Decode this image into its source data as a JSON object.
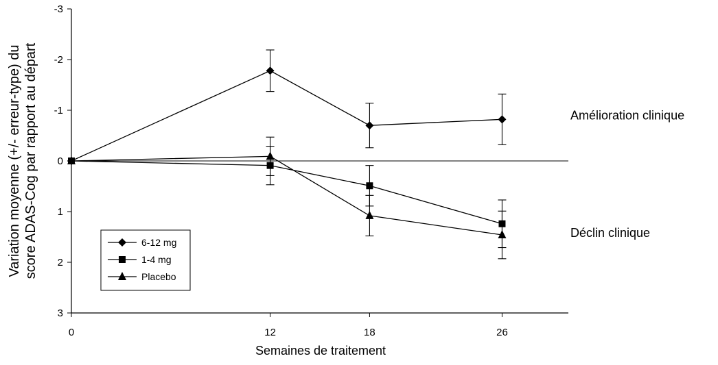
{
  "chart_data": {
    "type": "line",
    "ylabel_line1": "Variation moyenne (+/- erreur-type) du",
    "ylabel_line2": "score ADAS-Cog par rapport au départ",
    "xlabel": "Semaines de traitement",
    "x": [
      0,
      12,
      18,
      26
    ],
    "x_ticks": [
      "0",
      "12",
      "18",
      "26"
    ],
    "xlim": [
      0,
      30
    ],
    "ylim": [
      -3,
      3
    ],
    "y_inverted": true,
    "y_ticks": [
      "-3",
      "-2",
      "-1",
      "0",
      "1",
      "2",
      "3"
    ],
    "y_tick_values": [
      -3,
      -2,
      -1,
      0,
      1,
      2,
      3
    ],
    "zero_line": true,
    "grid": false,
    "series": [
      {
        "name": "6-12 mg",
        "marker": "diamond",
        "values": [
          0,
          -1.78,
          -0.7,
          -0.82
        ],
        "errors": [
          0,
          0.41,
          0.44,
          0.5
        ]
      },
      {
        "name": "1-4 mg",
        "marker": "square",
        "values": [
          0,
          0.09,
          0.49,
          1.24
        ],
        "errors": [
          0,
          0.38,
          0.4,
          0.47
        ]
      },
      {
        "name": "Placebo",
        "marker": "triangle",
        "values": [
          0,
          -0.09,
          1.08,
          1.46
        ],
        "errors": [
          0,
          0.38,
          0.4,
          0.47
        ]
      }
    ],
    "annotations": [
      {
        "text": "Amélioration clinique",
        "y": -0.9
      },
      {
        "text": "Déclin clinique",
        "y": 1.42
      }
    ],
    "legend_position": "bottom-left"
  }
}
